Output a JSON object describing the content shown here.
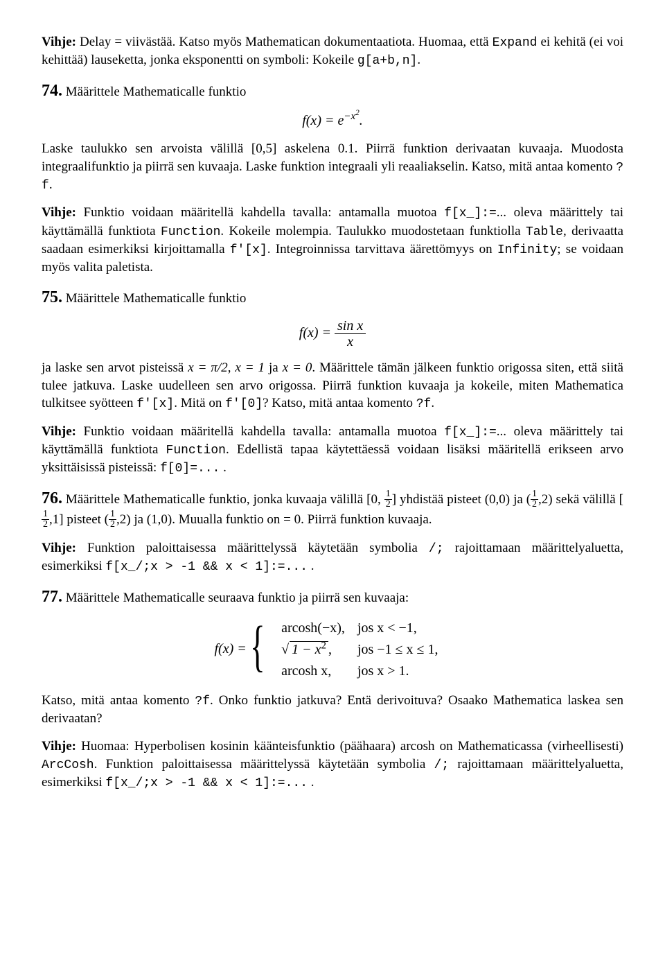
{
  "p_hint1_a": "Vihje:",
  "p_hint1_b": " Delay = viivästää. Katso myös Mathematican dokumentaatiota. Huomaa, että ",
  "p_hint1_c": "Expand",
  "p_hint1_d": " ei kehitä (ei voi kehittää) lauseketta, jonka eksponentti on symboli: Kokeile ",
  "p_hint1_e": "g[a+b,n]",
  "p_hint1_f": ".",
  "n74": "74.",
  "p74a": "  Määrittele Mathematicalle funktio",
  "eq74": "f(x) = e",
  "eq74_exp": "−x",
  "eq74_exp2": "2",
  "eq74_end": ".",
  "p74b_a": "Laske taulukko sen arvoista välillä [0,5] askelena 0.1. Piirrä funktion derivaatan kuvaaja. Muodosta integraalifunktio ja piirrä sen kuvaaja. Laske funktion integraali yli reaaliakselin. Katso, mitä antaa komento ",
  "p74b_b": "?f",
  "p74b_c": ".",
  "p74h_a": "Vihje:",
  "p74h_b": " Funktio voidaan määritellä kahdella tavalla: antamalla muotoa ",
  "p74h_c": "f[x_]:=",
  "p74h_d": "... oleva määrittely tai käyttämällä funktiota ",
  "p74h_e": "Function",
  "p74h_f": ". Kokeile molempia. Taulukko muodostetaan funktiolla ",
  "p74h_g": "Table",
  "p74h_h": ", derivaatta saadaan esimerkiksi kirjoittamalla ",
  "p74h_i": "f'[x]",
  "p74h_j": ". Integroinnissa tarvittava äärettömyys on ",
  "p74h_k": "Infinity",
  "p74h_l": "; se voidaan myös valita paletista.",
  "n75": "75.",
  "p75a": "  Määrittele Mathematicalle funktio",
  "eq75_lhs": "f(x) = ",
  "eq75_top": "sin x",
  "eq75_bot": "x",
  "p75b_a": "ja laske sen arvot pisteissä ",
  "p75b_b": "x = π/2",
  "p75b_c": ", ",
  "p75b_d": "x = 1",
  "p75b_e": " ja ",
  "p75b_f": "x = 0",
  "p75b_g": ". Määrittele tämän jälkeen funktio origossa siten, että siitä tulee jatkuva. Laske uudelleen sen arvo origossa. Piirrä funktion kuvaaja ja kokeile, miten Mathematica tulkitsee syötteen ",
  "p75b_h": "f'[x]",
  "p75b_i": ". Mitä on ",
  "p75b_j": "f'[0]",
  "p75b_k": "? Katso, mitä antaa komento ",
  "p75b_l": "?f",
  "p75b_m": ".",
  "p75h_a": "Vihje:",
  "p75h_b": " Funktio voidaan määritellä kahdella tavalla: antamalla muotoa ",
  "p75h_c": "f[x_]:=",
  "p75h_d": "... oleva määrittely tai käyttämällä funktiota ",
  "p75h_e": "Function",
  "p75h_f": ". Edellistä tapaa käytettäessä voidaan lisäksi määritellä erikseen arvo yksittäisissä pisteissä: ",
  "p75h_g": "f[0]=...",
  "p75h_h": " .",
  "n76": "76.",
  "p76_a": "  Määrittele Mathematicalle funktio, jonka kuvaaja välillä [0, ",
  "p76_b": "] yhdistää pisteet (0,0) ja (",
  "p76_c": ",2) sekä välillä [",
  "p76_d": ",1] pisteet (",
  "p76_e": ",2) ja (1,0). Muualla funktio on = 0. Piirrä funktion kuvaaja.",
  "p76h_a": "Vihje:",
  "p76h_b": " Funktion paloittaisessa määrittelyssä käytetään symbolia ",
  "p76h_c": "/;",
  "p76h_d": " rajoittamaan määrittelyaluetta, esimerkiksi ",
  "p76h_e": "f[x_/;x > -1 && x < 1]:=...",
  "p76h_f": " .",
  "n77": "77.",
  "p77a": "  Määrittele Mathematicalle seuraava funktio ja piirrä sen kuvaaja:",
  "eq77_lhs": "f(x) = ",
  "eq77_r1a": "arcosh(−x),",
  "eq77_r1b": "jos x < −1,",
  "eq77_r2a_pre": "",
  "eq77_r2a_rad": "1 − x",
  "eq77_r2a_sup": "2",
  "eq77_r2a_post": ",",
  "eq77_r2b": "jos −1 ≤ x ≤ 1,",
  "eq77_r3a": "arcosh x,",
  "eq77_r3b": "jos x > 1.",
  "p77b_a": "Katso, mitä antaa komento ",
  "p77b_b": "?f",
  "p77b_c": ". Onko funktio jatkuva? Entä derivoituva? Osaako Mathematica laskea sen derivaatan?",
  "p77h_a": "Vihje:",
  "p77h_b": " Huomaa: Hyperbolisen kosinin käänteisfunktio (päähaara) arcosh on Mathematicassa (virheellisesti) ",
  "p77h_c": "ArcCosh",
  "p77h_d": ". Funktion paloittaisessa määrittelyssä käytetään symbolia ",
  "p77h_e": "/;",
  "p77h_f": " rajoittamaan määrittelyaluetta, esimerkiksi ",
  "p77h_g": "f[x_/;x > -1 && x < 1]:=...",
  "p77h_h": " ."
}
